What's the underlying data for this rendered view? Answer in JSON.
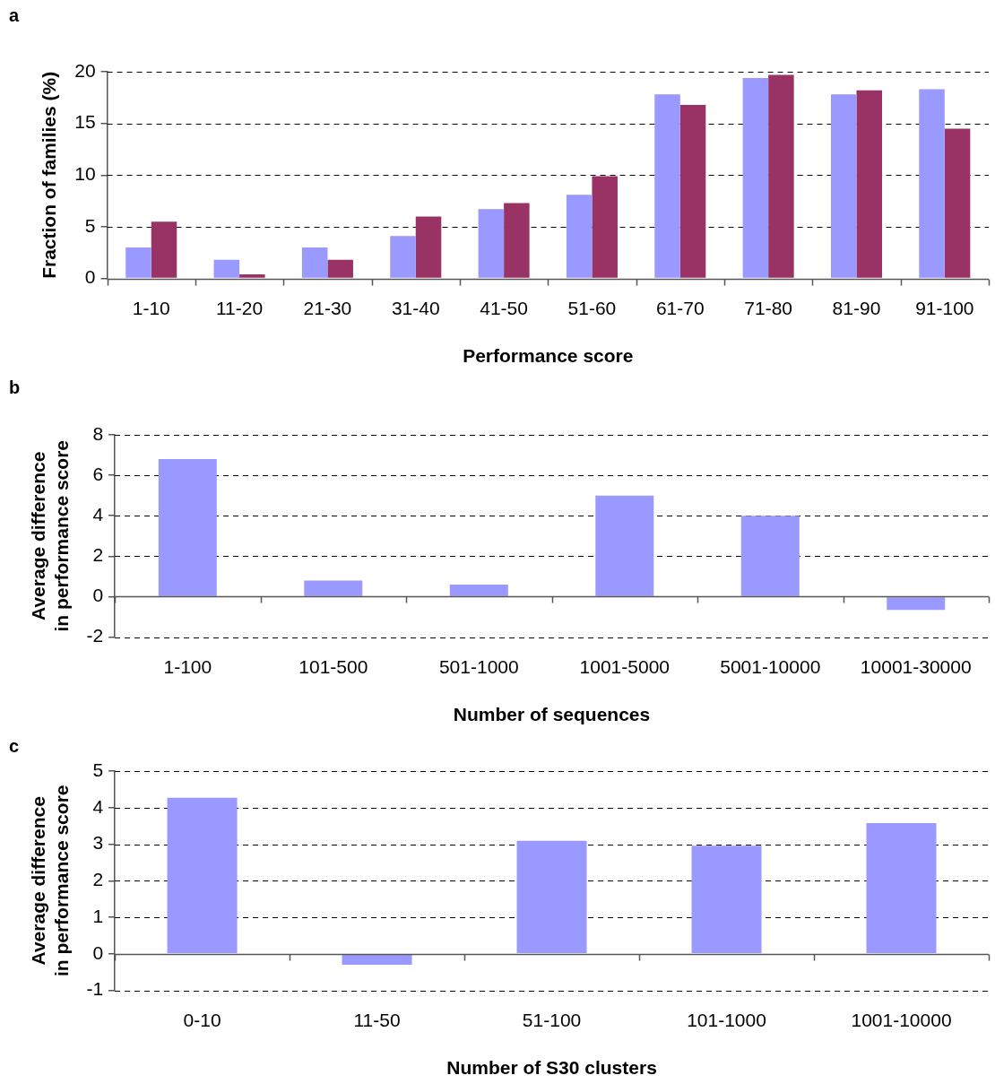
{
  "chart_data": [
    {
      "type": "bar",
      "annotations": [
        "a"
      ],
      "xlabel": "Performance score",
      "ylabel": "Fraction of families (%)",
      "categories": [
        "1-10",
        "11-20",
        "21-30",
        "31-40",
        "41-50",
        "51-60",
        "61-70",
        "71-80",
        "81-90",
        "91-100"
      ],
      "series": [
        {
          "color": "#9999ff",
          "values": [
            3.0,
            1.8,
            3.0,
            4.1,
            6.7,
            8.1,
            17.8,
            19.4,
            17.8,
            18.3
          ]
        },
        {
          "color": "#993366",
          "values": [
            5.5,
            0.4,
            1.8,
            6.0,
            7.3,
            9.9,
            16.8,
            19.7,
            18.2,
            14.5
          ]
        }
      ],
      "ylim": [
        0,
        20
      ],
      "yticks": [
        0,
        5,
        10,
        15,
        20
      ],
      "grid": "y",
      "legend": false
    },
    {
      "type": "bar",
      "annotations": [
        "b"
      ],
      "xlabel": "Number of sequences",
      "ylabel": "Average difference\nin performance score",
      "categories": [
        "1-100",
        "101-500",
        "501-1000",
        "1001-5000",
        "5001-10000",
        "10001-30000"
      ],
      "values": [
        6.8,
        0.8,
        0.6,
        5.0,
        4.0,
        -0.65
      ],
      "color": "#9999ff",
      "ylim": [
        -2,
        8
      ],
      "yticks": [
        -2,
        0,
        2,
        4,
        6,
        8
      ],
      "grid": "y",
      "legend": false
    },
    {
      "type": "bar",
      "annotations": [
        "c"
      ],
      "xlabel": "Number of S30 clusters",
      "ylabel": "Average difference\nin performance score",
      "categories": [
        "0-10",
        "11-50",
        "51-100",
        "101-1000",
        "1001-10000"
      ],
      "values": [
        4.27,
        -0.3,
        3.09,
        2.96,
        3.58
      ],
      "color": "#9999ff",
      "ylim": [
        -1,
        5
      ],
      "yticks": [
        -1,
        0,
        1,
        2,
        3,
        4,
        5
      ],
      "grid": "y",
      "legend": false
    }
  ]
}
